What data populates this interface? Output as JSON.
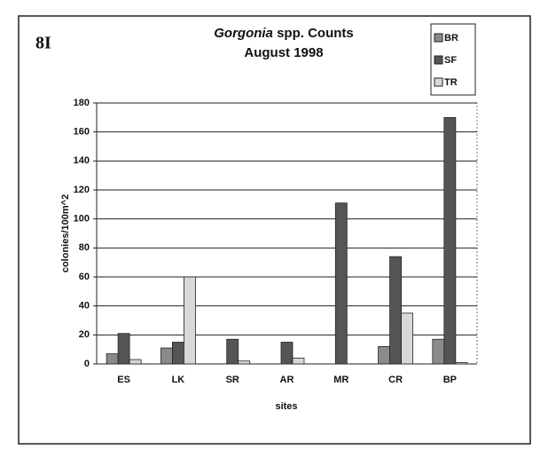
{
  "chart_data": {
    "type": "bar",
    "panel_label": "8I",
    "title": [
      "Gorgonia",
      "spp. Counts"
    ],
    "subtitle": "August 1998",
    "ylabel": "colonies/100m^2",
    "xlabel": "sites",
    "categories": [
      "ES",
      "LK",
      "SR",
      "AR",
      "MR",
      "CR",
      "BP"
    ],
    "series": [
      {
        "name": "BR",
        "color": "#8a8a8a",
        "values": [
          7,
          11,
          0,
          0,
          0,
          12,
          17
        ]
      },
      {
        "name": "SF",
        "color": "#555555",
        "values": [
          21,
          15,
          17,
          15,
          111,
          74,
          170
        ]
      },
      {
        "name": "TR",
        "color": "#d8d8d8",
        "values": [
          3,
          60,
          2,
          4,
          0,
          35,
          1
        ]
      }
    ],
    "ylim": [
      0,
      180
    ],
    "yticks": [
      0,
      20,
      40,
      60,
      80,
      100,
      120,
      140,
      160,
      180
    ],
    "grid": true,
    "legend": "top-right"
  }
}
